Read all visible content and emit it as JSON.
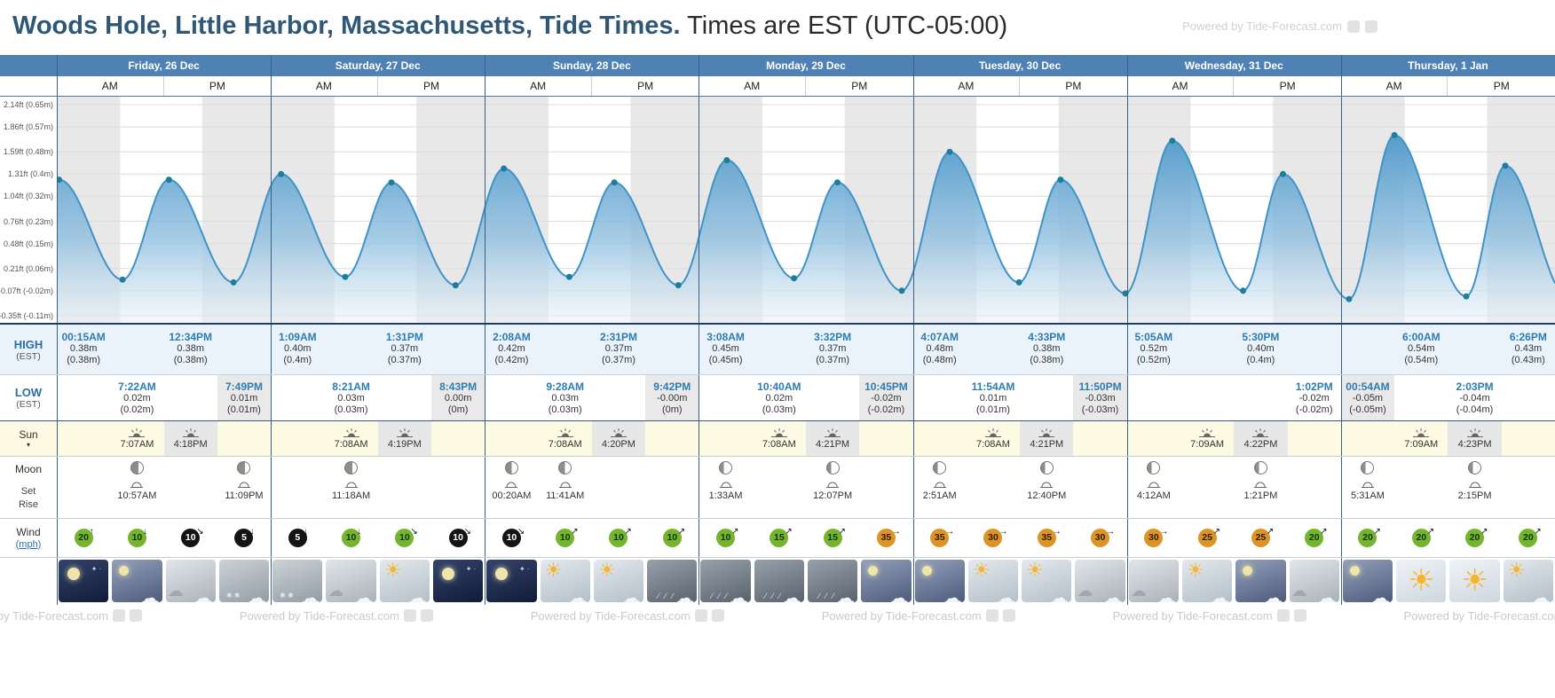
{
  "header": {
    "title": "Woods Hole, Little Harbor, Massachusetts, Tide Times.",
    "subtitle": " Times are EST (UTC-05:00)",
    "watermark": "Powered by Tide-Forecast.com"
  },
  "footer": {
    "watermark": "Powered by Tide-Forecast.com"
  },
  "row_labels": {
    "high": "HIGH",
    "high_sub": "(EST)",
    "low": "LOW",
    "low_sub": "(EST)",
    "sun": "Sun",
    "moon": "Moon",
    "set": "Set",
    "rise": "Rise",
    "wind": "Wind",
    "wind_unit": "(mph)"
  },
  "am_label": "AM",
  "pm_label": "PM",
  "colors": {
    "header_blue": "#4f81b5",
    "curve_blue": "#3f93c7",
    "dot_teal": "#1d7d9c",
    "tide_time_blue": "#2e7cb0",
    "night_gray": "#e8e8e8",
    "sun_row_yellow": "#fcfae3",
    "high_row_blue": "#eaf3fa",
    "wind_green": "#74b42e",
    "wind_black": "#141414",
    "wind_orange": "#dc9427"
  },
  "chart_data": {
    "type": "area",
    "title": "Tide height curve, Woods Hole Little Harbor",
    "x_axis": "Friday 26 Dec 00:00 to Thursday 1 Jan 24:00 (EST), hours",
    "x_range_hours": [
      0,
      168
    ],
    "ylim_m": [
      -0.11,
      0.65
    ],
    "y_axis_ticks": [
      "2.14ft (0.65m)",
      "1.86ft (0.57m)",
      "1.59ft (0.48m)",
      "1.31ft (0.4m)",
      "1.04ft (0.32m)",
      "0.76ft (0.23m)",
      "0.48ft (0.15m)",
      "0.21ft (0.06m)",
      "-0.07ft (-0.02m)",
      "-0.35ft (-0.11m)"
    ],
    "y_tick_values": [
      0.65,
      0.57,
      0.48,
      0.4,
      0.32,
      0.23,
      0.15,
      0.06,
      -0.02,
      -0.11
    ],
    "extremes": [
      {
        "day": 0,
        "slot": 0,
        "type": "high",
        "time": "00:15AM",
        "height": "0.38m",
        "height_alt": "(0.38m)",
        "hours": 0.25,
        "m": 0.38
      },
      {
        "day": 0,
        "slot": 1,
        "type": "low",
        "time": "7:22AM",
        "height": "0.02m",
        "height_alt": "(0.02m)",
        "hours": 7.37,
        "m": 0.02
      },
      {
        "day": 0,
        "slot": 2,
        "type": "high",
        "time": "12:34PM",
        "height": "0.38m",
        "height_alt": "(0.38m)",
        "hours": 12.57,
        "m": 0.38
      },
      {
        "day": 0,
        "slot": 3,
        "type": "low",
        "time": "7:49PM",
        "height": "0.01m",
        "height_alt": "(0.01m)",
        "hours": 19.82,
        "m": 0.01,
        "night": true
      },
      {
        "day": 1,
        "slot": 0,
        "type": "high",
        "time": "1:09AM",
        "height": "0.40m",
        "height_alt": "(0.4m)",
        "hours": 25.15,
        "m": 0.4
      },
      {
        "day": 1,
        "slot": 1,
        "type": "low",
        "time": "8:21AM",
        "height": "0.03m",
        "height_alt": "(0.03m)",
        "hours": 32.35,
        "m": 0.03
      },
      {
        "day": 1,
        "slot": 2,
        "type": "high",
        "time": "1:31PM",
        "height": "0.37m",
        "height_alt": "(0.37m)",
        "hours": 37.52,
        "m": 0.37
      },
      {
        "day": 1,
        "slot": 3,
        "type": "low",
        "time": "8:43PM",
        "height": "0.00m",
        "height_alt": "(0m)",
        "hours": 44.72,
        "m": 0.0,
        "night": true
      },
      {
        "day": 2,
        "slot": 0,
        "type": "high",
        "time": "2:08AM",
        "height": "0.42m",
        "height_alt": "(0.42m)",
        "hours": 50.13,
        "m": 0.42
      },
      {
        "day": 2,
        "slot": 1,
        "type": "low",
        "time": "9:28AM",
        "height": "0.03m",
        "height_alt": "(0.03m)",
        "hours": 57.47,
        "m": 0.03
      },
      {
        "day": 2,
        "slot": 2,
        "type": "high",
        "time": "2:31PM",
        "height": "0.37m",
        "height_alt": "(0.37m)",
        "hours": 62.52,
        "m": 0.37
      },
      {
        "day": 2,
        "slot": 3,
        "type": "low",
        "time": "9:42PM",
        "height": "-0.00m",
        "height_alt": "(0m)",
        "hours": 69.7,
        "m": 0.0,
        "night": true
      },
      {
        "day": 3,
        "slot": 0,
        "type": "high",
        "time": "3:08AM",
        "height": "0.45m",
        "height_alt": "(0.45m)",
        "hours": 75.13,
        "m": 0.45
      },
      {
        "day": 3,
        "slot": 1,
        "type": "low",
        "time": "10:40AM",
        "height": "0.02m",
        "height_alt": "(0.03m)",
        "hours": 82.67,
        "m": 0.025
      },
      {
        "day": 3,
        "slot": 2,
        "type": "high",
        "time": "3:32PM",
        "height": "0.37m",
        "height_alt": "(0.37m)",
        "hours": 87.53,
        "m": 0.37
      },
      {
        "day": 3,
        "slot": 3,
        "type": "low",
        "time": "10:45PM",
        "height": "-0.02m",
        "height_alt": "(-0.02m)",
        "hours": 94.75,
        "m": -0.02,
        "night": true
      },
      {
        "day": 4,
        "slot": 0,
        "type": "high",
        "time": "4:07AM",
        "height": "0.48m",
        "height_alt": "(0.48m)",
        "hours": 100.12,
        "m": 0.48
      },
      {
        "day": 4,
        "slot": 1,
        "type": "low",
        "time": "11:54AM",
        "height": "0.01m",
        "height_alt": "(0.01m)",
        "hours": 107.9,
        "m": 0.01
      },
      {
        "day": 4,
        "slot": 2,
        "type": "high",
        "time": "4:33PM",
        "height": "0.38m",
        "height_alt": "(0.38m)",
        "hours": 112.55,
        "m": 0.38
      },
      {
        "day": 4,
        "slot": 3,
        "type": "low",
        "time": "11:50PM",
        "height": "-0.03m",
        "height_alt": "(-0.03m)",
        "hours": 119.83,
        "m": -0.03,
        "night": true
      },
      {
        "day": 5,
        "slot": 0,
        "type": "high",
        "time": "5:05AM",
        "height": "0.52m",
        "height_alt": "(0.52m)",
        "hours": 125.08,
        "m": 0.52
      },
      {
        "day": 5,
        "slot": 3,
        "type": "low",
        "time": "1:02PM",
        "height": "-0.02m",
        "height_alt": "(-0.02m)",
        "hours": 133.03,
        "m": -0.02
      },
      {
        "day": 5,
        "slot": 2,
        "type": "high",
        "time": "5:30PM",
        "height": "0.40m",
        "height_alt": "(0.4m)",
        "hours": 137.5,
        "m": 0.4
      },
      {
        "day": 6,
        "slot": 0,
        "type": "low",
        "time": "00:54AM",
        "height": "-0.05m",
        "height_alt": "(-0.05m)",
        "hours": 144.9,
        "m": -0.05,
        "night": true
      },
      {
        "day": 6,
        "slot": 1,
        "type": "high",
        "time": "6:00AM",
        "height": "0.54m",
        "height_alt": "(0.54m)",
        "hours": 150.0,
        "m": 0.54
      },
      {
        "day": 6,
        "slot": 2,
        "type": "low",
        "time": "2:03PM",
        "height": "-0.04m",
        "height_alt": "(-0.04m)",
        "hours": 158.05,
        "m": -0.04
      },
      {
        "day": 6,
        "slot": 3,
        "type": "high",
        "time": "6:26PM",
        "height": "0.43m",
        "height_alt": "(0.43m)",
        "hours": 162.43,
        "m": 0.43
      }
    ]
  },
  "days": [
    {
      "name": "Friday, 26 Dec",
      "sun": {
        "rise": "7:07AM",
        "set": "4:18PM"
      },
      "moon_phase": "waxing-crescent",
      "moon": [
        {
          "slot": 1,
          "dir": "rise",
          "time": "10:57AM"
        },
        {
          "slot": 3,
          "dir": "set",
          "time": "11:09PM"
        }
      ],
      "wind": [
        {
          "speed": "20",
          "level": "green",
          "arrow": "↑"
        },
        {
          "speed": "10",
          "level": "green",
          "arrow": "↓"
        },
        {
          "speed": "10",
          "level": "black",
          "arrow": "↘"
        },
        {
          "speed": "5",
          "level": "black",
          "arrow": "↓"
        }
      ],
      "weather": [
        "clear-night",
        "partly-cloudy-night",
        "cloudy",
        "snow"
      ]
    },
    {
      "name": "Saturday, 27 Dec",
      "sun": {
        "rise": "7:08AM",
        "set": "4:19PM"
      },
      "moon_phase": "waxing-crescent",
      "moon": [
        {
          "slot": 1,
          "dir": "rise",
          "time": "11:18AM"
        }
      ],
      "wind": [
        {
          "speed": "5",
          "level": "black",
          "arrow": "↓"
        },
        {
          "speed": "10",
          "level": "green",
          "arrow": "↓"
        },
        {
          "speed": "10",
          "level": "green",
          "arrow": "↘"
        },
        {
          "speed": "10",
          "level": "black",
          "arrow": "↘"
        }
      ],
      "weather": [
        "snow",
        "cloudy",
        "partly-sunny",
        "clear-night"
      ]
    },
    {
      "name": "Sunday, 28 Dec",
      "sun": {
        "rise": "7:08AM",
        "set": "4:20PM"
      },
      "moon_phase": "first-quarter",
      "moon": [
        {
          "slot": 0,
          "dir": "set",
          "time": "00:20AM"
        },
        {
          "slot": 1,
          "dir": "rise",
          "time": "11:41AM"
        }
      ],
      "wind": [
        {
          "speed": "10",
          "level": "black",
          "arrow": "↘"
        },
        {
          "speed": "10",
          "level": "green",
          "arrow": "↗"
        },
        {
          "speed": "10",
          "level": "green",
          "arrow": "↗"
        },
        {
          "speed": "10",
          "level": "green",
          "arrow": "↗"
        }
      ],
      "weather": [
        "clear-night",
        "partly-sunny",
        "partly-sunny",
        "rain"
      ]
    },
    {
      "name": "Monday, 29 Dec",
      "sun": {
        "rise": "7:08AM",
        "set": "4:21PM"
      },
      "moon_phase": "waxing-gibbous",
      "moon": [
        {
          "slot": 0,
          "dir": "set",
          "time": "1:33AM"
        },
        {
          "slot": 2,
          "dir": "rise",
          "time": "12:07PM"
        }
      ],
      "wind": [
        {
          "speed": "10",
          "level": "green",
          "arrow": "↗"
        },
        {
          "speed": "15",
          "level": "green",
          "arrow": "↗"
        },
        {
          "speed": "15",
          "level": "green",
          "arrow": "↗"
        },
        {
          "speed": "35",
          "level": "orange",
          "arrow": "→"
        }
      ],
      "weather": [
        "rain",
        "rain",
        "rain",
        "partly-cloudy-night"
      ]
    },
    {
      "name": "Tuesday, 30 Dec",
      "sun": {
        "rise": "7:08AM",
        "set": "4:21PM"
      },
      "moon_phase": "waxing-gibbous",
      "moon": [
        {
          "slot": 0,
          "dir": "set",
          "time": "2:51AM"
        },
        {
          "slot": 2,
          "dir": "rise",
          "time": "12:40PM"
        }
      ],
      "wind": [
        {
          "speed": "35",
          "level": "orange",
          "arrow": "→"
        },
        {
          "speed": "30",
          "level": "orange",
          "arrow": "→"
        },
        {
          "speed": "35",
          "level": "orange",
          "arrow": "→"
        },
        {
          "speed": "30",
          "level": "orange",
          "arrow": "→"
        }
      ],
      "weather": [
        "partly-cloudy-night",
        "partly-sunny",
        "partly-sunny",
        "cloudy"
      ]
    },
    {
      "name": "Wednesday, 31 Dec",
      "sun": {
        "rise": "7:09AM",
        "set": "4:22PM"
      },
      "moon_phase": "waxing-gibbous",
      "moon": [
        {
          "slot": 0,
          "dir": "set",
          "time": "4:12AM"
        },
        {
          "slot": 2,
          "dir": "rise",
          "time": "1:21PM"
        }
      ],
      "wind": [
        {
          "speed": "30",
          "level": "orange",
          "arrow": "→"
        },
        {
          "speed": "25",
          "level": "orange",
          "arrow": "↗"
        },
        {
          "speed": "25",
          "level": "orange",
          "arrow": "↗"
        },
        {
          "speed": "20",
          "level": "green",
          "arrow": "↗"
        }
      ],
      "weather": [
        "cloudy",
        "partly-sunny",
        "partly-cloudy-night",
        "cloudy"
      ]
    },
    {
      "name": "Thursday, 1 Jan",
      "sun": {
        "rise": "7:09AM",
        "set": "4:23PM"
      },
      "moon_phase": "waxing-gibbous",
      "moon": [
        {
          "slot": 0,
          "dir": "set",
          "time": "5:31AM"
        },
        {
          "slot": 2,
          "dir": "rise",
          "time": "2:15PM"
        }
      ],
      "wind": [
        {
          "speed": "20",
          "level": "green",
          "arrow": "↗"
        },
        {
          "speed": "20",
          "level": "green",
          "arrow": "↗"
        },
        {
          "speed": "20",
          "level": "green",
          "arrow": "↗"
        },
        {
          "speed": "20",
          "level": "green",
          "arrow": "↗"
        }
      ],
      "weather": [
        "partly-cloudy-night",
        "sunny",
        "sunny",
        "partly-sunny"
      ]
    }
  ]
}
